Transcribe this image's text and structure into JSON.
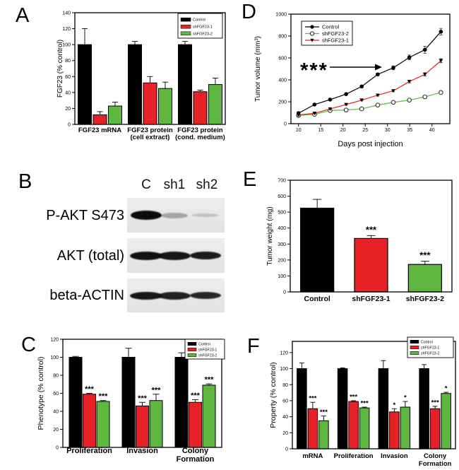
{
  "panels": {
    "A": "A",
    "B": "B",
    "C": "C",
    "D": "D",
    "E": "E",
    "F": "F"
  },
  "colors": {
    "control": "#000000",
    "shFGF23_1": "#e62226",
    "shFGF23_2": "#5fb640"
  },
  "chart_data": [
    {
      "id": "A",
      "type": "bar",
      "ylabel": "FGF23 (% control)",
      "ylim": [
        0,
        140
      ],
      "yticks": [
        0,
        20,
        40,
        60,
        80,
        100,
        120,
        140
      ],
      "categories": [
        "FGF23 mRNA",
        "FGF23 protein|(cell extract)",
        "FGF23 protein|(cond. medium)"
      ],
      "series": [
        {
          "name": "Control",
          "color": "#000000",
          "values": [
            100,
            100,
            100
          ],
          "errors": [
            20,
            4,
            4
          ],
          "sig": [
            "",
            "",
            ""
          ]
        },
        {
          "name": "shFGF23-1",
          "color": "#e62226",
          "values": [
            12,
            52,
            41
          ],
          "errors": [
            4,
            8,
            2
          ],
          "sig": [
            "",
            "",
            ""
          ]
        },
        {
          "name": "shFGF23-2",
          "color": "#5fb640",
          "values": [
            23,
            45,
            50
          ],
          "errors": [
            5,
            8,
            8
          ],
          "sig": [
            "",
            "",
            ""
          ]
        }
      ],
      "legend_position": "top-right"
    },
    {
      "id": "D",
      "type": "line",
      "xlabel": "Days post injection",
      "ylabel": "Tumor volume (mm³)",
      "xlim": [
        8.3,
        44
      ],
      "ylim": [
        0,
        1000
      ],
      "xticks": [
        10,
        15,
        20,
        25,
        30,
        35,
        40
      ],
      "yticks": [
        0,
        200,
        400,
        600,
        800,
        1000
      ],
      "x": [
        10,
        13.6,
        17.1,
        20.7,
        24.2,
        27.8,
        31.3,
        34.9,
        38.4,
        42
      ],
      "series": [
        {
          "name": "Control",
          "color": "#000000",
          "marker": "circle-filled",
          "values": [
            95,
            175,
            220,
            270,
            340,
            450,
            510,
            605,
            675,
            840
          ],
          "errors": [
            15,
            8,
            8,
            8,
            12,
            12,
            18,
            22,
            32,
            30
          ]
        },
        {
          "name": "shFGF23-2",
          "color": "#5fb640",
          "marker": "circle-open",
          "values": [
            75,
            85,
            120,
            125,
            135,
            170,
            195,
            215,
            245,
            285
          ],
          "errors": [
            8,
            4,
            4,
            4,
            4,
            4,
            5,
            5,
            5,
            8
          ]
        },
        {
          "name": "shFGF23-1",
          "color": "#e62226",
          "marker": "triangle-down",
          "values": [
            80,
            95,
            135,
            175,
            215,
            260,
            300,
            385,
            450,
            575
          ],
          "errors": [
            10,
            6,
            6,
            6,
            6,
            8,
            8,
            12,
            15,
            18
          ]
        }
      ],
      "annotation": "***",
      "legend_position": "top-left"
    },
    {
      "id": "E",
      "type": "bar",
      "ylabel": "Tumor weight (mg)",
      "ylim": [
        0,
        700
      ],
      "yticks": [
        0,
        100,
        200,
        300,
        400,
        500,
        600,
        700
      ],
      "bars": [
        {
          "label": "Control",
          "value": 525,
          "error": 55,
          "color": "#000000",
          "sig": ""
        },
        {
          "label": "shFGF23-1",
          "value": 335,
          "error": 18,
          "color": "#e62226",
          "sig": "***"
        },
        {
          "label": "shFGF23-2",
          "value": 172,
          "error": 20,
          "color": "#5fb640",
          "sig": "***"
        }
      ]
    },
    {
      "id": "C",
      "type": "bar",
      "ylabel": "Phenotype (% control)",
      "ylim": [
        0,
        120
      ],
      "yticks": [
        0,
        20,
        40,
        60,
        80,
        100,
        120
      ],
      "categories": [
        "Proliferation",
        "Invasion",
        "Colony|Formation"
      ],
      "series": [
        {
          "name": "Control",
          "color": "#000000",
          "values": [
            100,
            100,
            100
          ],
          "errors": [
            1,
            10,
            5
          ],
          "sig": [
            "",
            "",
            ""
          ]
        },
        {
          "name": "shFGF23-1",
          "color": "#e62226",
          "values": [
            59,
            46,
            50
          ],
          "errors": [
            1,
            4,
            3
          ],
          "sig": [
            "***",
            "***",
            "***"
          ]
        },
        {
          "name": "shFGF23-2",
          "color": "#5fb640",
          "values": [
            51,
            52,
            69
          ],
          "errors": [
            1,
            7,
            1.5
          ],
          "sig": [
            "***",
            "***",
            "***"
          ]
        }
      ],
      "legend_position": "top-right"
    },
    {
      "id": "F",
      "type": "bar",
      "ylabel": "Property (% control)",
      "ylim": [
        0,
        134
      ],
      "yticks": [
        0,
        20,
        40,
        60,
        80,
        100,
        120
      ],
      "categories": [
        "mRNA",
        "Proliferation",
        "Invasion",
        "Colony|Formation"
      ],
      "series": [
        {
          "name": "Control",
          "color": "#000000",
          "values": [
            100,
            100,
            100,
            100
          ],
          "errors": [
            7,
            1,
            10,
            5
          ],
          "sig": [
            "",
            "",
            "",
            ""
          ]
        },
        {
          "name": "shFGF23-1",
          "color": "#e62226",
          "values": [
            50,
            59,
            46,
            50
          ],
          "errors": [
            8,
            1,
            4,
            3
          ],
          "sig": [
            "***",
            "***",
            "*",
            "***"
          ]
        },
        {
          "name": "shFGF23-2",
          "color": "#5fb640",
          "values": [
            35,
            51,
            52,
            69
          ],
          "errors": [
            6,
            1,
            7,
            1.5
          ],
          "sig": [
            "***",
            "***",
            "*",
            "*"
          ]
        }
      ],
      "legend_position": "top-right"
    }
  ],
  "blot": {
    "lanes": [
      "C",
      "sh1",
      "sh2"
    ],
    "rows": [
      {
        "label": "P-AKT S473",
        "band_intensities": [
          1.0,
          0.3,
          0.17
        ]
      },
      {
        "label": "AKT (total)",
        "band_intensities": [
          0.97,
          0.95,
          0.93
        ]
      },
      {
        "label": "beta-ACTIN",
        "band_intensities": [
          0.95,
          0.9,
          0.87
        ]
      }
    ]
  }
}
